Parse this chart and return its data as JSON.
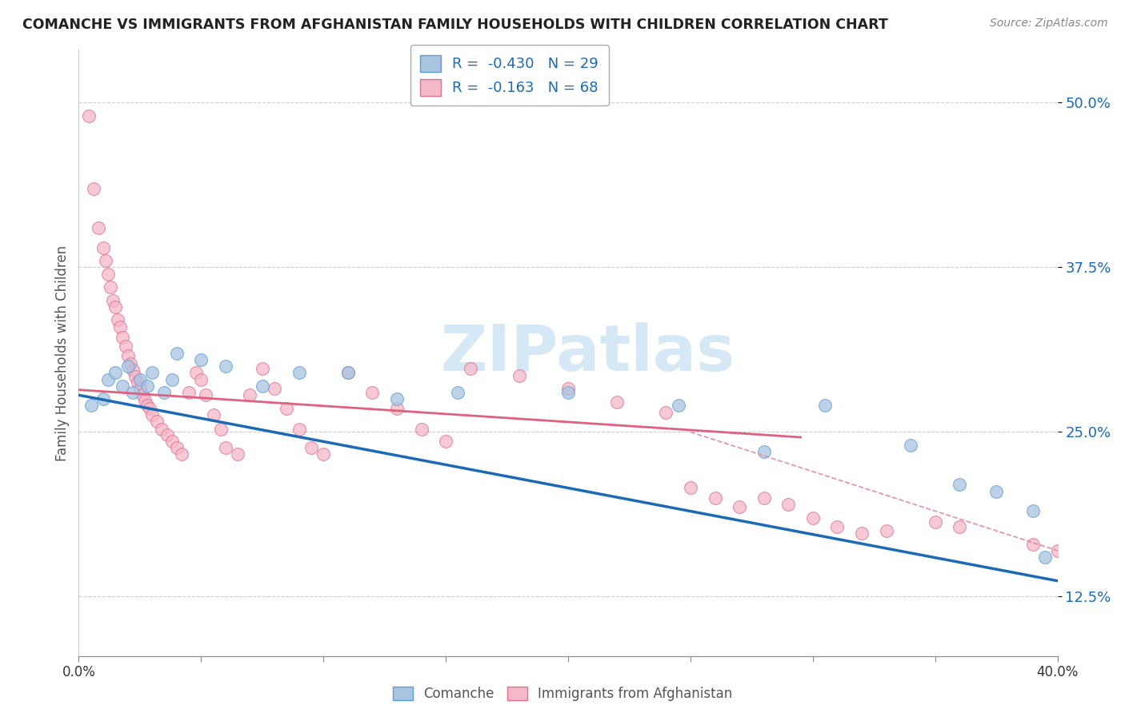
{
  "title": "COMANCHE VS IMMIGRANTS FROM AFGHANISTAN FAMILY HOUSEHOLDS WITH CHILDREN CORRELATION CHART",
  "source": "Source: ZipAtlas.com",
  "ylabel": "Family Households with Children",
  "xlabel_comanche": "Comanche",
  "xlabel_afghanistan": "Immigrants from Afghanistan",
  "xlim": [
    0.0,
    0.4
  ],
  "ylim": [
    0.08,
    0.54
  ],
  "yticks": [
    0.125,
    0.25,
    0.375,
    0.5
  ],
  "ytick_labels": [
    "12.5%",
    "25.0%",
    "37.5%",
    "50.0%"
  ],
  "xticks": [
    0.0,
    0.05,
    0.1,
    0.15,
    0.2,
    0.25,
    0.3,
    0.35,
    0.4
  ],
  "legend_R_blue": "-0.430",
  "legend_N_blue": "29",
  "legend_R_pink": "-0.163",
  "legend_N_pink": "68",
  "blue_scatter_color": "#a8c4e0",
  "blue_scatter_edge": "#5a9fd4",
  "pink_scatter_color": "#f4b8c8",
  "pink_scatter_edge": "#e07090",
  "blue_line_color": "#1a6ab5",
  "pink_line_color": "#e06080",
  "dashed_line_color": "#e090a8",
  "grid_color": "#cccccc",
  "watermark_color": "#d5e8f5",
  "background_color": "#ffffff",
  "blue_points": [
    [
      0.005,
      0.27
    ],
    [
      0.01,
      0.275
    ],
    [
      0.012,
      0.29
    ],
    [
      0.015,
      0.295
    ],
    [
      0.018,
      0.285
    ],
    [
      0.02,
      0.3
    ],
    [
      0.022,
      0.28
    ],
    [
      0.025,
      0.29
    ],
    [
      0.028,
      0.285
    ],
    [
      0.03,
      0.295
    ],
    [
      0.035,
      0.28
    ],
    [
      0.038,
      0.29
    ],
    [
      0.04,
      0.31
    ],
    [
      0.05,
      0.305
    ],
    [
      0.06,
      0.3
    ],
    [
      0.075,
      0.285
    ],
    [
      0.09,
      0.295
    ],
    [
      0.11,
      0.295
    ],
    [
      0.13,
      0.275
    ],
    [
      0.155,
      0.28
    ],
    [
      0.2,
      0.28
    ],
    [
      0.245,
      0.27
    ],
    [
      0.28,
      0.235
    ],
    [
      0.305,
      0.27
    ],
    [
      0.34,
      0.24
    ],
    [
      0.36,
      0.21
    ],
    [
      0.375,
      0.205
    ],
    [
      0.39,
      0.19
    ],
    [
      0.395,
      0.155
    ]
  ],
  "pink_points": [
    [
      0.004,
      0.49
    ],
    [
      0.006,
      0.435
    ],
    [
      0.008,
      0.405
    ],
    [
      0.01,
      0.39
    ],
    [
      0.011,
      0.38
    ],
    [
      0.012,
      0.37
    ],
    [
      0.013,
      0.36
    ],
    [
      0.014,
      0.35
    ],
    [
      0.015,
      0.345
    ],
    [
      0.016,
      0.335
    ],
    [
      0.017,
      0.33
    ],
    [
      0.018,
      0.322
    ],
    [
      0.019,
      0.315
    ],
    [
      0.02,
      0.308
    ],
    [
      0.021,
      0.302
    ],
    [
      0.022,
      0.297
    ],
    [
      0.023,
      0.292
    ],
    [
      0.024,
      0.288
    ],
    [
      0.025,
      0.283
    ],
    [
      0.026,
      0.278
    ],
    [
      0.027,
      0.274
    ],
    [
      0.028,
      0.27
    ],
    [
      0.029,
      0.268
    ],
    [
      0.03,
      0.263
    ],
    [
      0.032,
      0.258
    ],
    [
      0.034,
      0.252
    ],
    [
      0.036,
      0.248
    ],
    [
      0.038,
      0.243
    ],
    [
      0.04,
      0.238
    ],
    [
      0.042,
      0.233
    ],
    [
      0.045,
      0.28
    ],
    [
      0.048,
      0.295
    ],
    [
      0.05,
      0.29
    ],
    [
      0.052,
      0.278
    ],
    [
      0.055,
      0.263
    ],
    [
      0.058,
      0.252
    ],
    [
      0.06,
      0.238
    ],
    [
      0.065,
      0.233
    ],
    [
      0.07,
      0.278
    ],
    [
      0.075,
      0.298
    ],
    [
      0.08,
      0.283
    ],
    [
      0.085,
      0.268
    ],
    [
      0.09,
      0.252
    ],
    [
      0.095,
      0.238
    ],
    [
      0.1,
      0.233
    ],
    [
      0.11,
      0.295
    ],
    [
      0.12,
      0.28
    ],
    [
      0.13,
      0.268
    ],
    [
      0.14,
      0.252
    ],
    [
      0.15,
      0.243
    ],
    [
      0.16,
      0.298
    ],
    [
      0.18,
      0.293
    ],
    [
      0.2,
      0.283
    ],
    [
      0.22,
      0.273
    ],
    [
      0.24,
      0.265
    ],
    [
      0.25,
      0.208
    ],
    [
      0.26,
      0.2
    ],
    [
      0.27,
      0.193
    ],
    [
      0.28,
      0.2
    ],
    [
      0.29,
      0.195
    ],
    [
      0.3,
      0.185
    ],
    [
      0.31,
      0.178
    ],
    [
      0.32,
      0.173
    ],
    [
      0.33,
      0.175
    ],
    [
      0.35,
      0.182
    ],
    [
      0.36,
      0.178
    ],
    [
      0.39,
      0.165
    ],
    [
      0.4,
      0.16
    ]
  ],
  "blue_line_x0": 0.0,
  "blue_line_x1": 0.4,
  "blue_line_y0": 0.278,
  "blue_line_y1": 0.137,
  "pink_line_x0": 0.0,
  "pink_line_x1": 0.295,
  "pink_line_y0": 0.282,
  "pink_line_y1": 0.246,
  "dash_line_x0": 0.25,
  "dash_line_x1": 0.4,
  "dash_line_y0": 0.25,
  "dash_line_y1": 0.16
}
